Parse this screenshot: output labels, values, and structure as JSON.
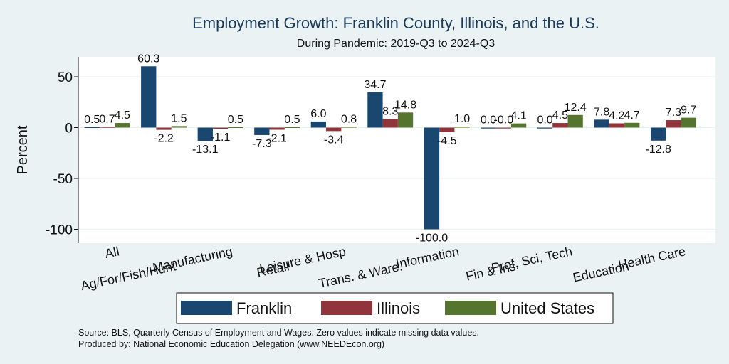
{
  "chart_data": {
    "type": "bar",
    "title": "Employment Growth: Franklin County, Illinois, and the U.S.",
    "subtitle": "During Pandemic: 2019-Q3 to 2024-Q3",
    "ylabel": "Percent",
    "xlabel": "",
    "ylim": [
      -110,
      70
    ],
    "yticks": [
      50,
      0,
      -50,
      -100
    ],
    "grid": true,
    "categories": [
      "All",
      "Ag/For/Fish/Hunt",
      "Manufacturing",
      "Retail",
      "Leisure & Hosp",
      "Trans. & Ware.",
      "Information",
      "Fin & Ins",
      "Prof, Sci, Tech",
      "Education",
      "Health Care"
    ],
    "series": [
      {
        "name": "Franklin",
        "color": "#1a476f",
        "values": [
          0.5,
          60.3,
          -13.1,
          -7.3,
          6.0,
          34.7,
          -100.0,
          0.0,
          0.0,
          7.8,
          -12.8
        ]
      },
      {
        "name": "Illinois",
        "color": "#90353b",
        "values": [
          0.7,
          -2.2,
          -1.1,
          -2.1,
          -3.4,
          8.3,
          -4.5,
          -0.0,
          4.5,
          4.2,
          7.3
        ]
      },
      {
        "name": "United States",
        "color": "#55752f",
        "values": [
          4.5,
          1.5,
          0.5,
          0.5,
          0.8,
          14.8,
          1.0,
          4.1,
          12.4,
          4.7,
          9.7
        ]
      }
    ],
    "labels": [
      [
        "0.5",
        "0.7",
        "4.5"
      ],
      [
        "60.3",
        "-2.2",
        "1.5"
      ],
      [
        "-13.1",
        "-1.1",
        "0.5"
      ],
      [
        "-7.3",
        "-2.1",
        "0.5"
      ],
      [
        "6.0",
        "-3.4",
        "0.8"
      ],
      [
        "34.7",
        "8.3",
        "14.8"
      ],
      [
        "-100.0",
        "-4.5",
        "1.0"
      ],
      [
        "0.0",
        "-0.0",
        "4.1"
      ],
      [
        "0.0",
        "4.5",
        "12.4"
      ],
      [
        "7.8",
        "4.2",
        "4.7"
      ],
      [
        "-12.8",
        "7.3",
        "9.7"
      ]
    ],
    "legend_position": "bottom"
  },
  "notes": {
    "source": "Source: BLS, Quarterly Census of Employment and Wages. Zero values indicate missing data values.",
    "produced_by": "Produced by: National Economic Education Delegation (www.NEEDEcon.org)"
  }
}
